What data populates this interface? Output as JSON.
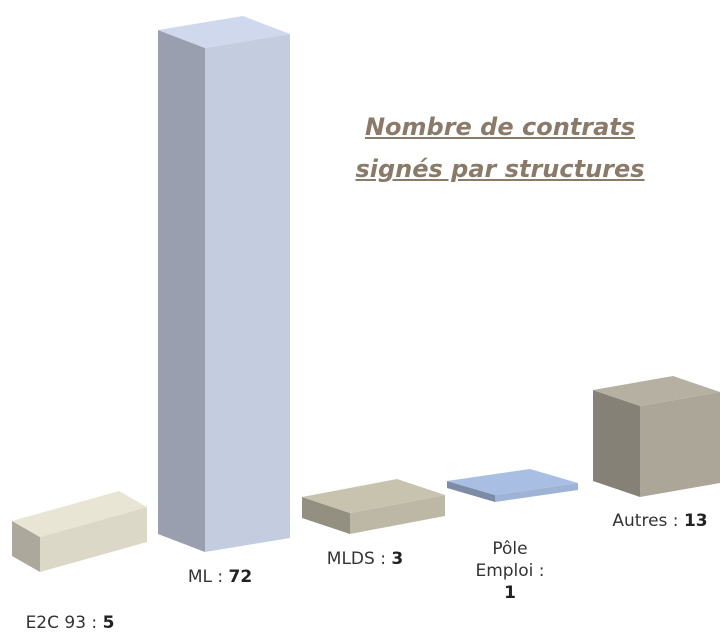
{
  "chart_data": {
    "type": "bar3d",
    "title": "Nombre de contrats signés par structures",
    "categories": [
      "E2C 93 :",
      "ML :",
      "MLDS :",
      "Pôle Emploi :",
      "Autres :"
    ],
    "values": [
      5,
      72,
      3,
      1,
      13
    ],
    "colors": [
      "#dcd8c8",
      "#c4cce0",
      "#bdb8a5",
      "#9fb3d6",
      "#aca699"
    ]
  }
}
